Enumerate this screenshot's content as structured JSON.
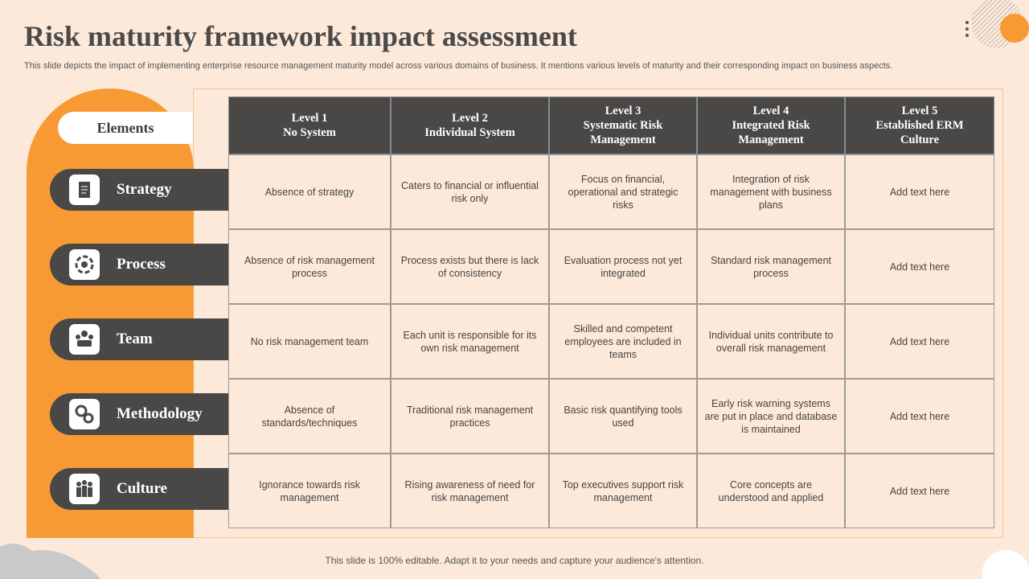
{
  "header": {
    "title": "Risk maturity framework impact assessment",
    "subtitle": "This slide depicts the impact of implementing enterprise resource management maturity model across various domains of business. It mentions various levels of maturity and their corresponding impact on business aspects."
  },
  "elements_label": "Elements",
  "table": {
    "columns": [
      "Level 1\nNo System",
      "Level 2\nIndividual System",
      "Level 3\nSystematic Risk\nManagement",
      "Level 4\nIntegrated Risk\nManagement",
      "Level 5\nEstablished ERM\nCulture"
    ],
    "rows": [
      {
        "element": "Strategy",
        "cells": [
          "Absence of strategy",
          "Caters to financial or influential risk only",
          "Focus on financial, operational and strategic risks",
          "Integration of risk management with business plans",
          "Add text here"
        ]
      },
      {
        "element": "Process",
        "cells": [
          "Absence of risk management process",
          "Process exists but there is lack of consistency",
          "Evaluation process not yet integrated",
          "Standard risk management process",
          "Add text here"
        ]
      },
      {
        "element": "Team",
        "cells": [
          "No risk management team",
          "Each unit is responsible for its own risk management",
          "Skilled and competent employees are included in teams",
          "Individual units contribute to overall risk management",
          "Add text here"
        ]
      },
      {
        "element": "Methodology",
        "cells": [
          "Absence of standards/techniques",
          "Traditional risk management practices",
          "Basic risk quantifying tools used",
          "Early risk warning systems are put in place and database is maintained",
          "Add text here"
        ]
      },
      {
        "element": "Culture",
        "cells": [
          "Ignorance towards risk management",
          "Rising awareness of need for risk management",
          "Top executives support risk management",
          "Core concepts are understood and applied",
          "Add text here"
        ]
      }
    ]
  },
  "footer": "This slide is 100% editable. Adapt it to your needs and capture your audience's attention."
}
